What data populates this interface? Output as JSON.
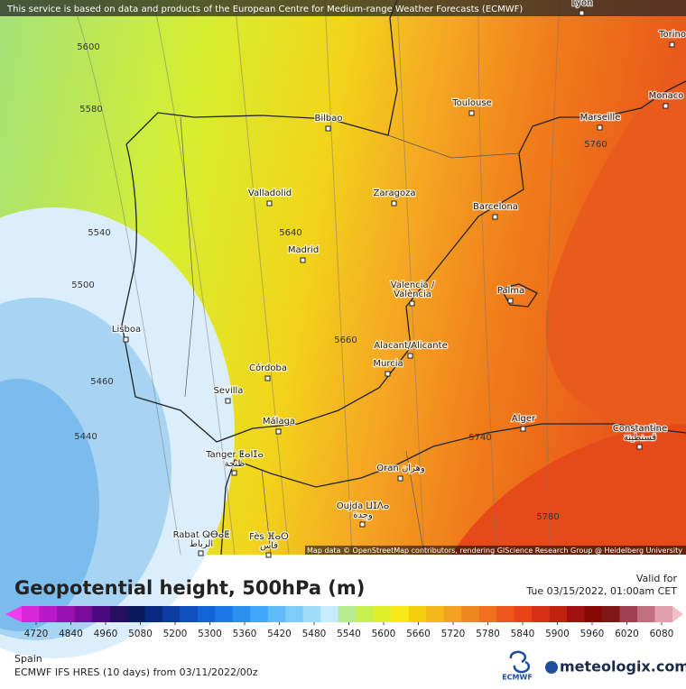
{
  "banner": "This service is based on data and products of the European Centre for Medium-range Weather Forecasts (ECMWF)",
  "cities": [
    {
      "name": "Lyon"
    },
    {
      "name": "Torino"
    },
    {
      "name": "Monaco"
    },
    {
      "name": "Marseille"
    },
    {
      "name": "Toulouse"
    },
    {
      "name": "Bilbao"
    },
    {
      "name": "Zaragoza"
    },
    {
      "name": "Barcelona"
    },
    {
      "name": "Valladolid"
    },
    {
      "name": "Madrid"
    },
    {
      "name": "Valencia /",
      "name2": "València"
    },
    {
      "name": "Palma"
    },
    {
      "name": "Lisboa"
    },
    {
      "name": "Alacant/Alicante"
    },
    {
      "name": "Murcia"
    },
    {
      "name": "Córdoba"
    },
    {
      "name": "Sevilla"
    },
    {
      "name": "Málaga"
    },
    {
      "name": "Alger"
    },
    {
      "name": "Constantine",
      "name2": "قسنطينة"
    },
    {
      "name": "Tanger ⵟⴰⵏⵊⴰ",
      "name2": "طنجة"
    },
    {
      "name": "Oran وهران"
    },
    {
      "name": "Oujda ⵡⵊⴷⴰ",
      "name2": "وجدة"
    },
    {
      "name": "Rabat ⵕⴱⴰⵟ",
      "name2": "الرباط"
    },
    {
      "name": "Fès ⴼⴰⵙ",
      "name2": "فاس"
    }
  ],
  "contour_labels": [
    5600,
    5580,
    5540,
    5500,
    5460,
    5440,
    5640,
    5660,
    5760,
    5740,
    5780
  ],
  "attribution": "Map data © OpenStreetMap contributors, rendering GIScience Research Group @ Heidelberg University",
  "legend": {
    "title": "Geopotential height, 500hPa (m)",
    "valid_label": "Valid for",
    "valid_time": "Tue 03/15/2022, 01:00am CET",
    "ticks": [
      4720,
      4840,
      4960,
      5080,
      5200,
      5300,
      5360,
      5420,
      5480,
      5540,
      5600,
      5660,
      5720,
      5780,
      5840,
      5900,
      5960,
      6020,
      6080
    ],
    "colors": [
      "#f03cf0",
      "#d826d8",
      "#b818c8",
      "#9810b0",
      "#780c98",
      "#4a0a80",
      "#281060",
      "#0a1a5a",
      "#0a2a80",
      "#0c3ca0",
      "#1050c0",
      "#1464d8",
      "#1c7ae8",
      "#2a90f0",
      "#40a8f8",
      "#60bcf8",
      "#80ccf8",
      "#a0dcf8",
      "#c8ecfc",
      "#b8ec90",
      "#c8f050",
      "#e0f028",
      "#f8e818",
      "#f4d010",
      "#f4b818",
      "#f4a020",
      "#f08820",
      "#f07020",
      "#ec5820",
      "#e84418",
      "#d83018",
      "#c02010",
      "#a01010",
      "#880808",
      "#801818",
      "#a04050",
      "#c07080",
      "#e0a0b0",
      "#f0c0c8"
    ]
  },
  "footer": {
    "region": "Spain",
    "model": "ECMWF IFS HRES (10 days) from 03/11/2022/00z",
    "ecmwf": "ECMWF",
    "brand": "meteologix.com"
  }
}
